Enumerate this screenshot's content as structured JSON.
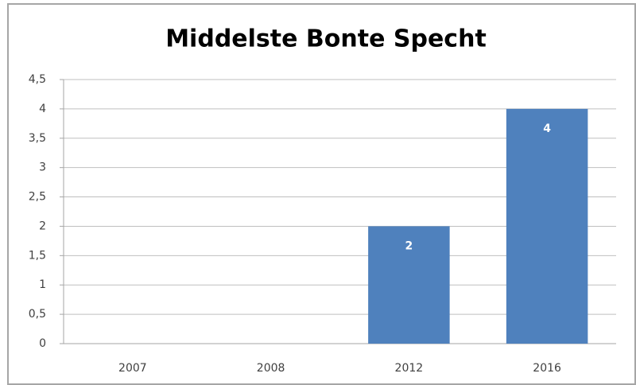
{
  "chart_data": {
    "type": "bar",
    "title": "Middelste Bonte Specht",
    "categories": [
      "2007",
      "2008",
      "2012",
      "2016"
    ],
    "values": [
      0,
      0,
      2,
      4
    ],
    "color": "#4f81bd",
    "ylim": [
      0,
      4.5
    ],
    "yticks": [
      0,
      {
        "value": 0.5,
        "label": "0,5"
      },
      1,
      {
        "value": 1.5,
        "label": "1,5"
      },
      2,
      {
        "value": 2.5,
        "label": "2,5"
      },
      3,
      {
        "value": 3.5,
        "label": "3,5"
      },
      4,
      {
        "value": 4.5,
        "label": "4,5"
      }
    ],
    "grid": true
  }
}
